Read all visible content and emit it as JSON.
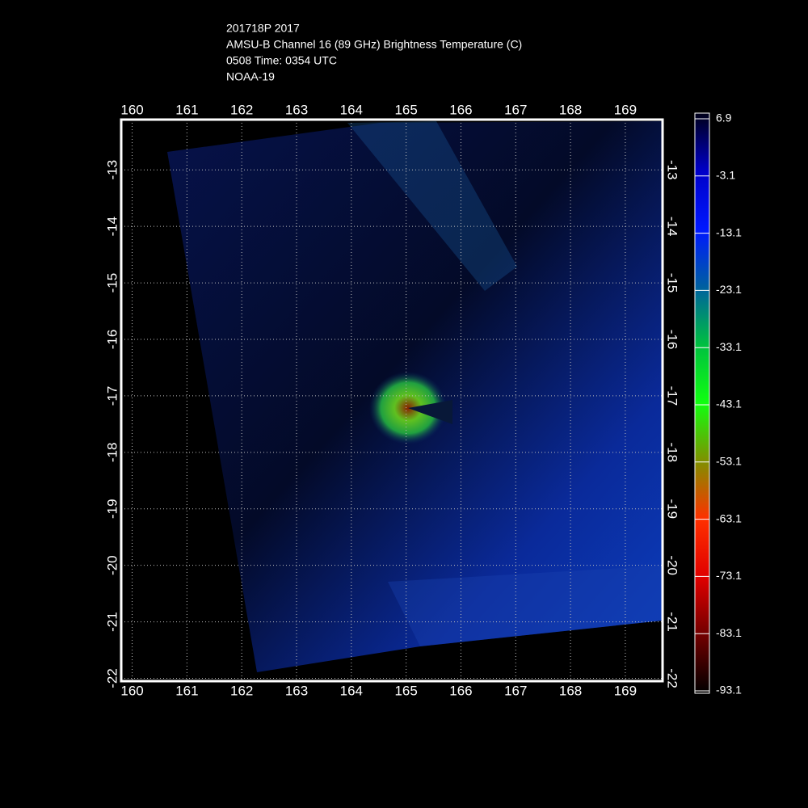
{
  "chart_data": {
    "type": "map",
    "title_lines": [
      "201718P 2017",
      "AMSU-B Channel 16 (89 GHz) Brightness Temperature (C)",
      "0508 Time: 0354 UTC",
      "NOAA-19"
    ],
    "xlim": [
      159.8,
      169.68
    ],
    "ylim": [
      -22.05,
      -12.11
    ],
    "xticks": [
      160,
      161,
      162,
      163,
      164,
      165,
      166,
      167,
      168,
      169
    ],
    "yticks": [
      -13,
      -14,
      -15,
      -16,
      -17,
      -18,
      -19,
      -20,
      -21,
      -22
    ],
    "grid": true,
    "colorbar": {
      "lim": [
        -93.1,
        6.9
      ],
      "ticks": [
        6.9,
        -3.1,
        -13.1,
        -23.1,
        -33.1,
        -43.1,
        -53.1,
        -63.1,
        -73.1,
        -83.1,
        -93.1
      ],
      "colors": [
        "#000018",
        "#0000c8",
        "#0018ff",
        "#0060a0",
        "#00c040",
        "#10ff10",
        "#809000",
        "#ff3000",
        "#e00000",
        "#700000",
        "#000000"
      ]
    }
  }
}
